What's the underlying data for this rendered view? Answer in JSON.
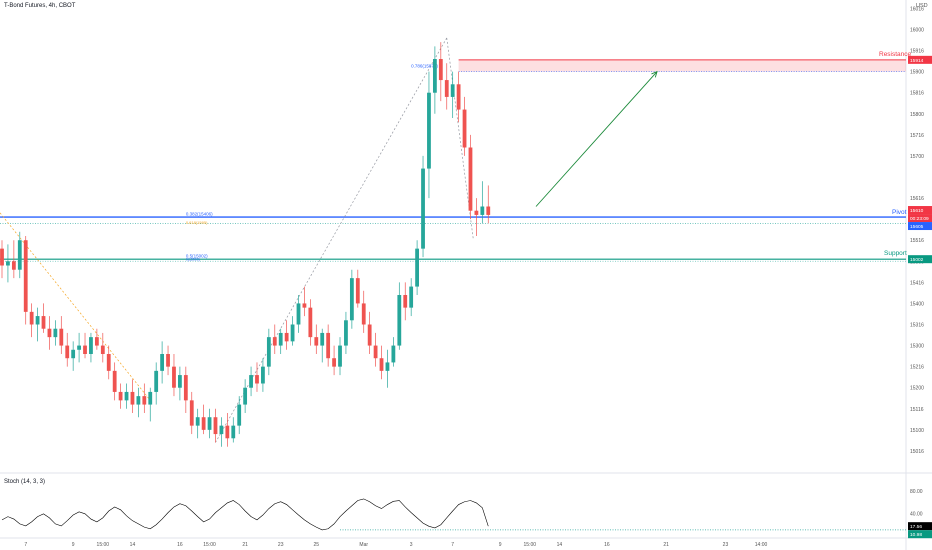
{
  "header": {
    "title": "T-Bond Futures, 4h, CBOT",
    "currency": "USD"
  },
  "stoch": {
    "title": "Stoch (14, 3, 3)",
    "ticks": [
      "80.00",
      "40.00"
    ],
    "ylim": [
      0,
      100
    ],
    "k_badge": "17.56",
    "d_badge": "10.98",
    "k_color": "#000000",
    "level": 10.98
  },
  "colors": {
    "up": "#26a69a",
    "down": "#ef5350",
    "resistance": "#f23645",
    "pivot": "#2962ff",
    "support": "#089981",
    "arrow": "#1b8a3a",
    "fib_line": "#9598a1"
  },
  "labels": {
    "resistance": "Resistance",
    "pivot": "Pivot",
    "support": "Support",
    "fib_786": "0.786(15872)",
    "fib_382": "0.382(15406)",
    "fib_382b": "0.618(1595)",
    "fib_0a": "0.5(15002)",
    "fib_0b": "0(15000)"
  },
  "chart_data": {
    "type": "candlestick",
    "y_ticks": [
      {
        "v": 161.0,
        "label": "16016"
      },
      {
        "v": 160.5,
        "label": "16000"
      },
      {
        "v": 160.0,
        "label": "15916"
      },
      {
        "v": 159.5,
        "label": "15900"
      },
      {
        "v": 159.0,
        "label": "15816"
      },
      {
        "v": 158.5,
        "label": "15800"
      },
      {
        "v": 158.0,
        "label": "15716"
      },
      {
        "v": 157.5,
        "label": "15700"
      },
      {
        "v": 156.5,
        "label": "15616"
      },
      {
        "v": 156.0,
        "label": "15600"
      },
      {
        "v": 155.5,
        "label": "15516"
      },
      {
        "v": 155.0,
        "label": "15500"
      },
      {
        "v": 154.5,
        "label": "15416"
      },
      {
        "v": 154.0,
        "label": "15400"
      },
      {
        "v": 153.5,
        "label": "15316"
      },
      {
        "v": 153.0,
        "label": "15300"
      },
      {
        "v": 152.5,
        "label": "15216"
      },
      {
        "v": 152.0,
        "label": "15200"
      },
      {
        "v": 151.5,
        "label": "15116"
      },
      {
        "v": 151.0,
        "label": "15100"
      },
      {
        "v": 150.5,
        "label": "15016"
      }
    ],
    "ylim": [
      150.0,
      161.2
    ],
    "x_ticks": [
      {
        "i": 4,
        "label": "7"
      },
      {
        "i": 12,
        "label": "9"
      },
      {
        "i": 17,
        "label": "15:00"
      },
      {
        "i": 22,
        "label": "14"
      },
      {
        "i": 30,
        "label": "16"
      },
      {
        "i": 35,
        "label": "15:00"
      },
      {
        "i": 41,
        "label": "21"
      },
      {
        "i": 47,
        "label": "23"
      },
      {
        "i": 53,
        "label": "25"
      },
      {
        "i": 61,
        "label": "Mar"
      },
      {
        "i": 69,
        "label": "3"
      },
      {
        "i": 76,
        "label": "7"
      },
      {
        "i": 84,
        "label": "9"
      },
      {
        "i": 89,
        "label": "15:00"
      },
      {
        "i": 94,
        "label": "14"
      },
      {
        "i": 102,
        "label": "16"
      },
      {
        "i": 112,
        "label": "21"
      },
      {
        "i": 122,
        "label": "23"
      },
      {
        "i": 128,
        "label": "14:00"
      }
    ],
    "levels": {
      "resistance": 159.78,
      "resistance_zone_low": 159.5,
      "pivot": 156.05,
      "pivot_green_dotted": 155.9,
      "support": 155.05,
      "price_badge_top": 156.2,
      "price_badge_bottom": 155.92
    },
    "price_badges": {
      "resistance": "15914",
      "pivot_top": "15610",
      "pivot_mid": "00:23:09",
      "pivot_bottom": "15605",
      "support": "15002"
    },
    "ohlc": [
      [
        155.3,
        155.5,
        154.6,
        154.9
      ],
      [
        154.9,
        155.4,
        154.5,
        155.0
      ],
      [
        155.0,
        155.5,
        154.6,
        154.8
      ],
      [
        154.8,
        155.7,
        154.6,
        155.5
      ],
      [
        155.5,
        155.6,
        153.5,
        153.8
      ],
      [
        153.8,
        154.0,
        153.2,
        153.5
      ],
      [
        153.5,
        153.9,
        153.1,
        153.7
      ],
      [
        153.7,
        154.0,
        153.3,
        153.4
      ],
      [
        153.4,
        153.7,
        152.9,
        153.2
      ],
      [
        153.2,
        153.6,
        153.0,
        153.4
      ],
      [
        153.4,
        153.7,
        152.8,
        153.0
      ],
      [
        153.0,
        153.3,
        152.5,
        152.7
      ],
      [
        152.7,
        153.1,
        152.4,
        152.9
      ],
      [
        152.9,
        153.3,
        152.6,
        153.0
      ],
      [
        153.0,
        153.3,
        152.7,
        152.8
      ],
      [
        152.8,
        153.3,
        152.6,
        153.2
      ],
      [
        153.2,
        153.4,
        152.9,
        153.0
      ],
      [
        153.0,
        153.3,
        152.6,
        152.8
      ],
      [
        152.8,
        153.0,
        152.2,
        152.4
      ],
      [
        152.4,
        152.6,
        151.7,
        151.9
      ],
      [
        151.9,
        152.1,
        151.5,
        151.7
      ],
      [
        151.7,
        152.1,
        151.5,
        151.9
      ],
      [
        151.9,
        152.2,
        151.4,
        151.6
      ],
      [
        151.6,
        152.0,
        151.3,
        151.8
      ],
      [
        151.8,
        152.1,
        151.4,
        151.6
      ],
      [
        151.6,
        152.0,
        151.2,
        151.9
      ],
      [
        151.9,
        152.6,
        151.6,
        152.4
      ],
      [
        152.4,
        153.1,
        152.1,
        152.8
      ],
      [
        152.8,
        153.0,
        152.3,
        152.5
      ],
      [
        152.5,
        152.8,
        151.8,
        152.0
      ],
      [
        152.0,
        152.5,
        151.7,
        152.3
      ],
      [
        152.3,
        152.5,
        151.4,
        151.7
      ],
      [
        151.7,
        151.9,
        150.9,
        151.1
      ],
      [
        151.1,
        151.5,
        150.8,
        151.3
      ],
      [
        151.3,
        151.6,
        150.9,
        151.0
      ],
      [
        151.0,
        151.5,
        150.8,
        151.3
      ],
      [
        151.3,
        151.5,
        150.7,
        150.9
      ],
      [
        150.9,
        151.3,
        150.6,
        151.1
      ],
      [
        151.1,
        151.4,
        150.6,
        150.8
      ],
      [
        150.8,
        151.3,
        150.7,
        151.1
      ],
      [
        151.1,
        151.8,
        150.9,
        151.6
      ],
      [
        151.6,
        152.2,
        151.4,
        152.0
      ],
      [
        152.0,
        152.5,
        151.8,
        152.3
      ],
      [
        152.3,
        152.6,
        151.9,
        152.1
      ],
      [
        152.1,
        152.7,
        151.9,
        152.5
      ],
      [
        152.5,
        153.4,
        152.3,
        153.2
      ],
      [
        153.2,
        153.5,
        152.8,
        153.0
      ],
      [
        153.0,
        153.4,
        152.8,
        153.3
      ],
      [
        153.3,
        153.6,
        152.9,
        153.1
      ],
      [
        153.1,
        153.7,
        153.0,
        153.5
      ],
      [
        153.5,
        154.2,
        153.3,
        154.0
      ],
      [
        154.0,
        154.4,
        153.7,
        153.9
      ],
      [
        153.9,
        154.1,
        153.0,
        153.2
      ],
      [
        153.2,
        153.5,
        152.8,
        153.0
      ],
      [
        153.0,
        153.4,
        152.6,
        153.3
      ],
      [
        153.3,
        153.5,
        152.5,
        152.7
      ],
      [
        152.7,
        153.0,
        152.3,
        152.5
      ],
      [
        152.5,
        153.2,
        152.3,
        153.0
      ],
      [
        153.0,
        153.8,
        152.8,
        153.6
      ],
      [
        153.6,
        154.8,
        153.4,
        154.6
      ],
      [
        154.6,
        154.8,
        153.9,
        154.0
      ],
      [
        154.0,
        154.3,
        153.3,
        153.5
      ],
      [
        153.5,
        153.8,
        152.8,
        153.0
      ],
      [
        153.0,
        153.3,
        152.5,
        152.7
      ],
      [
        152.7,
        153.0,
        152.2,
        152.4
      ],
      [
        152.4,
        152.9,
        152.0,
        152.6
      ],
      [
        152.6,
        153.2,
        152.5,
        153.0
      ],
      [
        153.0,
        154.5,
        152.9,
        154.2
      ],
      [
        154.2,
        154.5,
        153.6,
        153.9
      ],
      [
        153.9,
        154.6,
        153.7,
        154.4
      ],
      [
        154.4,
        155.5,
        154.2,
        155.3
      ],
      [
        155.3,
        157.5,
        155.1,
        157.2
      ],
      [
        157.2,
        159.5,
        156.5,
        159.0
      ],
      [
        159.0,
        160.1,
        158.5,
        159.8
      ],
      [
        159.8,
        160.2,
        158.8,
        159.3
      ],
      [
        159.3,
        159.7,
        158.6,
        158.9
      ],
      [
        158.9,
        159.5,
        158.4,
        159.2
      ],
      [
        159.2,
        159.5,
        158.3,
        158.6
      ],
      [
        158.6,
        158.9,
        157.5,
        157.7
      ],
      [
        157.7,
        158.0,
        156.0,
        156.2
      ],
      [
        156.2,
        156.5,
        155.6,
        156.1
      ],
      [
        156.1,
        156.9,
        155.9,
        156.3
      ],
      [
        156.3,
        156.8,
        155.9,
        156.1
      ]
    ]
  }
}
